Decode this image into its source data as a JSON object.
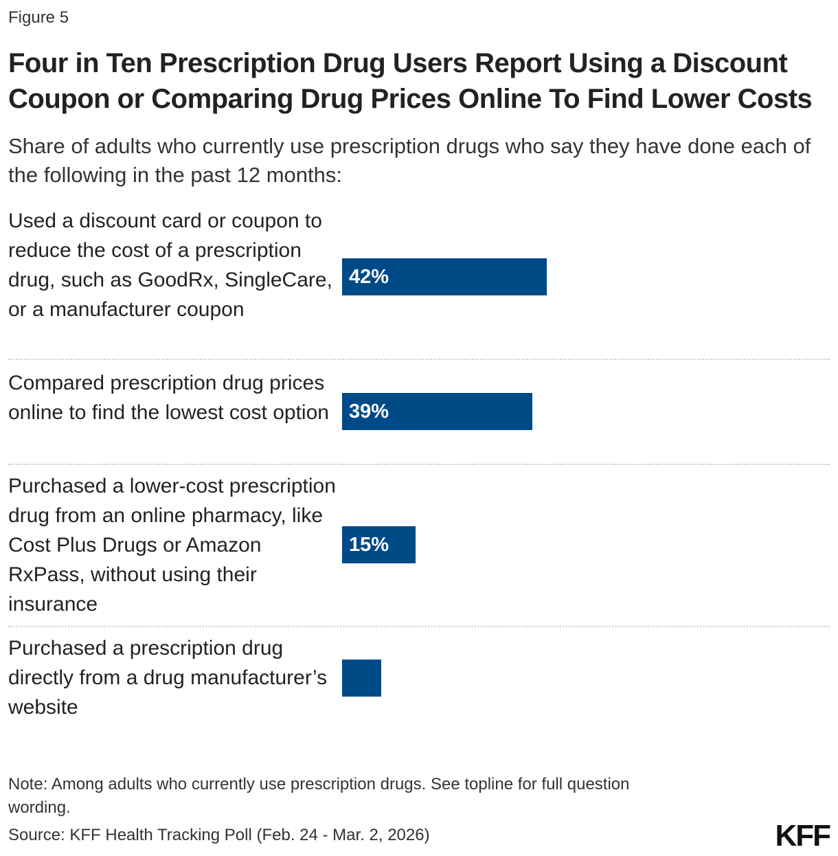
{
  "figure_label": "Figure 5",
  "title": "Four in Ten Prescription Drug Users Report Using a Discount Coupon or Comparing Drug Prices Online To Find Lower Costs",
  "subtitle": "Share of adults who currently use prescription drugs who say they have done each of the following in the past 12 months:",
  "chart_data": {
    "type": "bar",
    "orientation": "horizontal",
    "categories": [
      "Used a discount card or coupon to reduce the cost of a prescription drug, such as GoodRx, SingleCare, or a manufacturer coupon",
      "Compared prescription drug prices online to find the lowest cost option",
      "Purchased a lower-cost prescription drug from an online pharmacy, like Cost Plus Drugs or Amazon RxPass, without using their insurance",
      "Purchased a prescription drug directly from a drug manufacturer’s website"
    ],
    "values": [
      42,
      39,
      15,
      8
    ],
    "data_labels": [
      "42%",
      "39%",
      "15%",
      ""
    ],
    "xlim": [
      0,
      100
    ],
    "grid": false,
    "bar_color": "#004a87"
  },
  "note": "Note: Among adults who currently use prescription drugs. See topline for full question wording.",
  "source": "Source: KFF Health Tracking Poll (Feb. 24 - Mar. 2, 2026)",
  "logo": "KFF"
}
